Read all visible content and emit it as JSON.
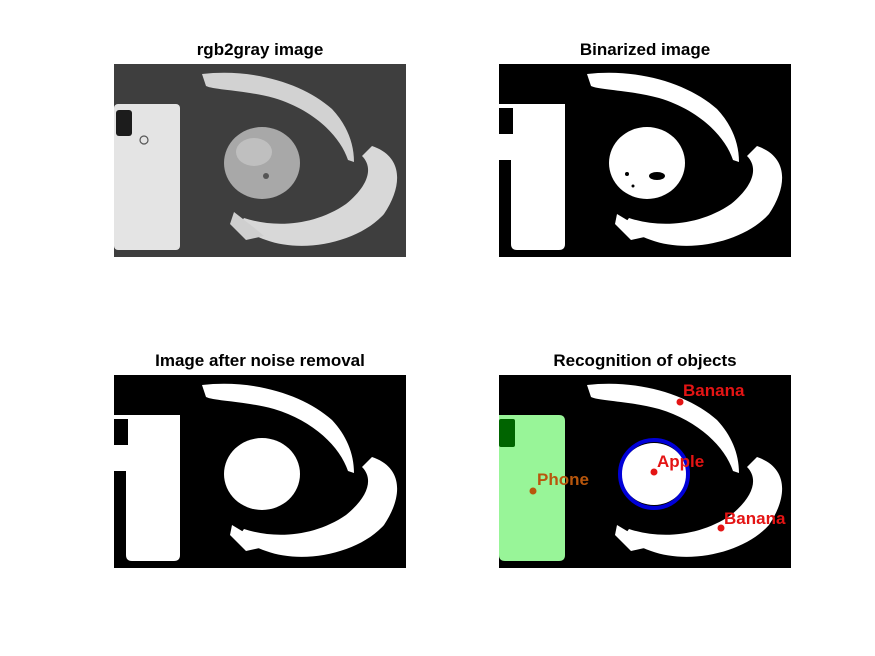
{
  "figure": {
    "panels": [
      {
        "title": "rgb2gray image"
      },
      {
        "title": "Binarized image"
      },
      {
        "title": "Image after noise removal"
      },
      {
        "title": "Recognition of objects"
      }
    ],
    "labels": {
      "banana_top": "Banana",
      "apple": "Apple",
      "phone": "Phone",
      "banana_bottom": "Banana"
    },
    "colors": {
      "background": "#ffffff",
      "gray_bg": "#3e3e3e",
      "phone_fill": "#98f598",
      "phone_camera": "#006400",
      "apple_circle": "#0000d8",
      "phone_label": "#b8560c",
      "banana_apple_label": "#e41414"
    }
  }
}
